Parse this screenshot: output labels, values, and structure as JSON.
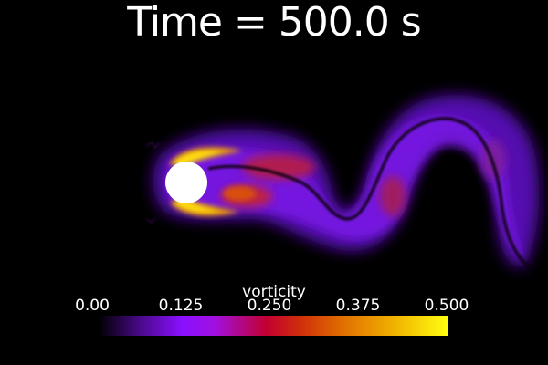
{
  "title": "Time = 500.0 s",
  "colorbar": {
    "label": "vorticity",
    "ticks": [
      "0.00",
      "0.125",
      "0.250",
      "0.375",
      "0.500"
    ],
    "range": [
      0.0,
      0.5
    ],
    "colormap": "gnuplot-like (black → purple → red → orange → yellow)"
  },
  "colors": {
    "background": "#000000",
    "text": "#ffffff",
    "cylinder": "#ffffff"
  }
}
